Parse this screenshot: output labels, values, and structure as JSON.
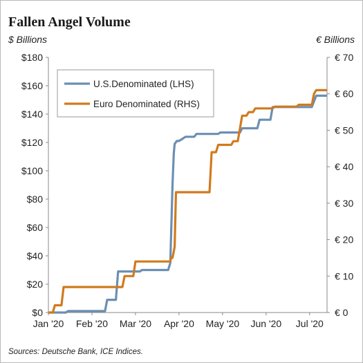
{
  "chart_data": {
    "type": "line",
    "title": "Fallen Angel Volume",
    "y_left_unit": "$ Billions",
    "y_right_unit": "€ Billions",
    "x_tick_labels": [
      "Jan '20",
      "Feb '20",
      "Mar '20",
      "Apr '20",
      "May '20",
      "Jun '20",
      "Jul '20"
    ],
    "x_ticks_month": [
      0,
      1,
      2,
      3,
      4,
      5,
      6
    ],
    "x_range_month": [
      0,
      6.4
    ],
    "y_left_ticks": [
      "$0",
      "$20",
      "$40",
      "$60",
      "$80",
      "$100",
      "$120",
      "$140",
      "$160",
      "$180"
    ],
    "y_left_range": [
      0,
      180
    ],
    "y_right_ticks": [
      "€ 0",
      "€ 10",
      "€ 20",
      "€ 30",
      "€ 40",
      "€ 50",
      "€ 60",
      "€ 70"
    ],
    "y_right_range": [
      0,
      70
    ],
    "grid": false,
    "legend_position": "top-left",
    "series": [
      {
        "name": "U.S.Denominated (LHS)",
        "axis": "left",
        "color": "#6b8fb3",
        "points": [
          [
            0.0,
            0
          ],
          [
            0.4,
            0
          ],
          [
            0.45,
            1
          ],
          [
            1.0,
            1
          ],
          [
            1.05,
            1
          ],
          [
            1.3,
            1
          ],
          [
            1.35,
            9
          ],
          [
            1.55,
            9
          ],
          [
            1.6,
            29
          ],
          [
            2.1,
            29
          ],
          [
            2.15,
            30
          ],
          [
            2.6,
            30
          ],
          [
            2.75,
            30
          ],
          [
            2.8,
            35
          ],
          [
            2.85,
            90
          ],
          [
            2.88,
            112
          ],
          [
            2.9,
            119
          ],
          [
            2.95,
            121
          ],
          [
            3.0,
            121
          ],
          [
            3.05,
            122
          ],
          [
            3.15,
            124
          ],
          [
            3.35,
            124
          ],
          [
            3.4,
            126
          ],
          [
            3.9,
            126
          ],
          [
            3.95,
            127
          ],
          [
            4.4,
            127
          ],
          [
            4.45,
            130
          ],
          [
            4.8,
            130
          ],
          [
            4.85,
            136
          ],
          [
            5.1,
            136
          ],
          [
            5.15,
            145
          ],
          [
            6.05,
            145
          ],
          [
            6.15,
            153
          ],
          [
            6.4,
            153
          ]
        ]
      },
      {
        "name": "Euro Denominated (RHS)",
        "axis": "right",
        "color": "#d07a1e",
        "points": [
          [
            0.0,
            0
          ],
          [
            0.1,
            0
          ],
          [
            0.15,
            2
          ],
          [
            0.3,
            2
          ],
          [
            0.35,
            7
          ],
          [
            1.7,
            7
          ],
          [
            1.75,
            10
          ],
          [
            1.95,
            10
          ],
          [
            2.0,
            14
          ],
          [
            2.8,
            14
          ],
          [
            2.82,
            15
          ],
          [
            2.85,
            15
          ],
          [
            2.9,
            18
          ],
          [
            2.93,
            33
          ],
          [
            3.7,
            33
          ],
          [
            3.75,
            44
          ],
          [
            3.85,
            44
          ],
          [
            3.9,
            46
          ],
          [
            4.2,
            46
          ],
          [
            4.25,
            47
          ],
          [
            4.35,
            47
          ],
          [
            4.45,
            54
          ],
          [
            4.55,
            54
          ],
          [
            4.6,
            55
          ],
          [
            4.7,
            55
          ],
          [
            4.75,
            56
          ],
          [
            5.15,
            56
          ],
          [
            5.2,
            56.5
          ],
          [
            5.7,
            56.5
          ],
          [
            5.75,
            57
          ],
          [
            6.05,
            57
          ],
          [
            6.1,
            60
          ],
          [
            6.15,
            61
          ],
          [
            6.4,
            61
          ]
        ]
      }
    ]
  },
  "source_note": "Sources: Deutsche Bank, ICE Indices."
}
